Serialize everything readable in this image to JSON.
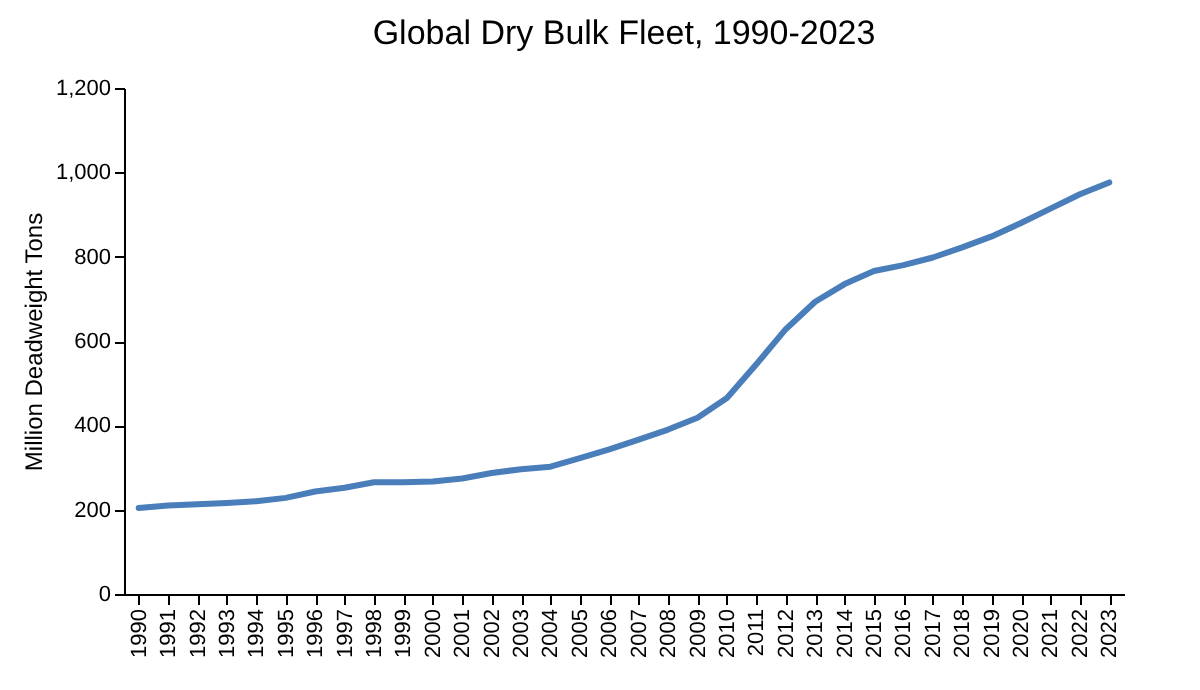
{
  "chart_data": {
    "type": "line",
    "title": "Global Dry Bulk Fleet, 1990-2023",
    "ylabel": "Million Deadweight Tons",
    "categories": [
      "1990",
      "1991",
      "1992",
      "1993",
      "1994",
      "1995",
      "1996",
      "1997",
      "1998",
      "1999",
      "2000",
      "2001",
      "2002",
      "2003",
      "2004",
      "2005",
      "2006",
      "2007",
      "2008",
      "2009",
      "2010",
      "2011",
      "2012",
      "2013",
      "2014",
      "2015",
      "2016",
      "2017",
      "2018",
      "2019",
      "2020",
      "2021",
      "2022",
      "2023"
    ],
    "series": [
      {
        "color": "#4a7ebb",
        "values": [
          204,
          210,
          213,
          216,
          220,
          228,
          243,
          252,
          265,
          265,
          267,
          274,
          287,
          296,
          302,
          322,
          343,
          366,
          390,
          418,
          465,
          545,
          628,
          693,
          735,
          766,
          780,
          798,
          822,
          848,
          880,
          914,
          948,
          976
        ]
      }
    ],
    "ylim": [
      0,
      1200
    ],
    "yticks": [
      {
        "value": 0,
        "label": "0"
      },
      {
        "value": 200,
        "label": "200"
      },
      {
        "value": 400,
        "label": "400"
      },
      {
        "value": 600,
        "label": "600"
      },
      {
        "value": 800,
        "label": "800"
      },
      {
        "value": 1000,
        "label": "1,000"
      },
      {
        "value": 1200,
        "label": "1,200"
      }
    ],
    "grid": false,
    "legend": false,
    "marker": "none",
    "line_style": "solid"
  }
}
